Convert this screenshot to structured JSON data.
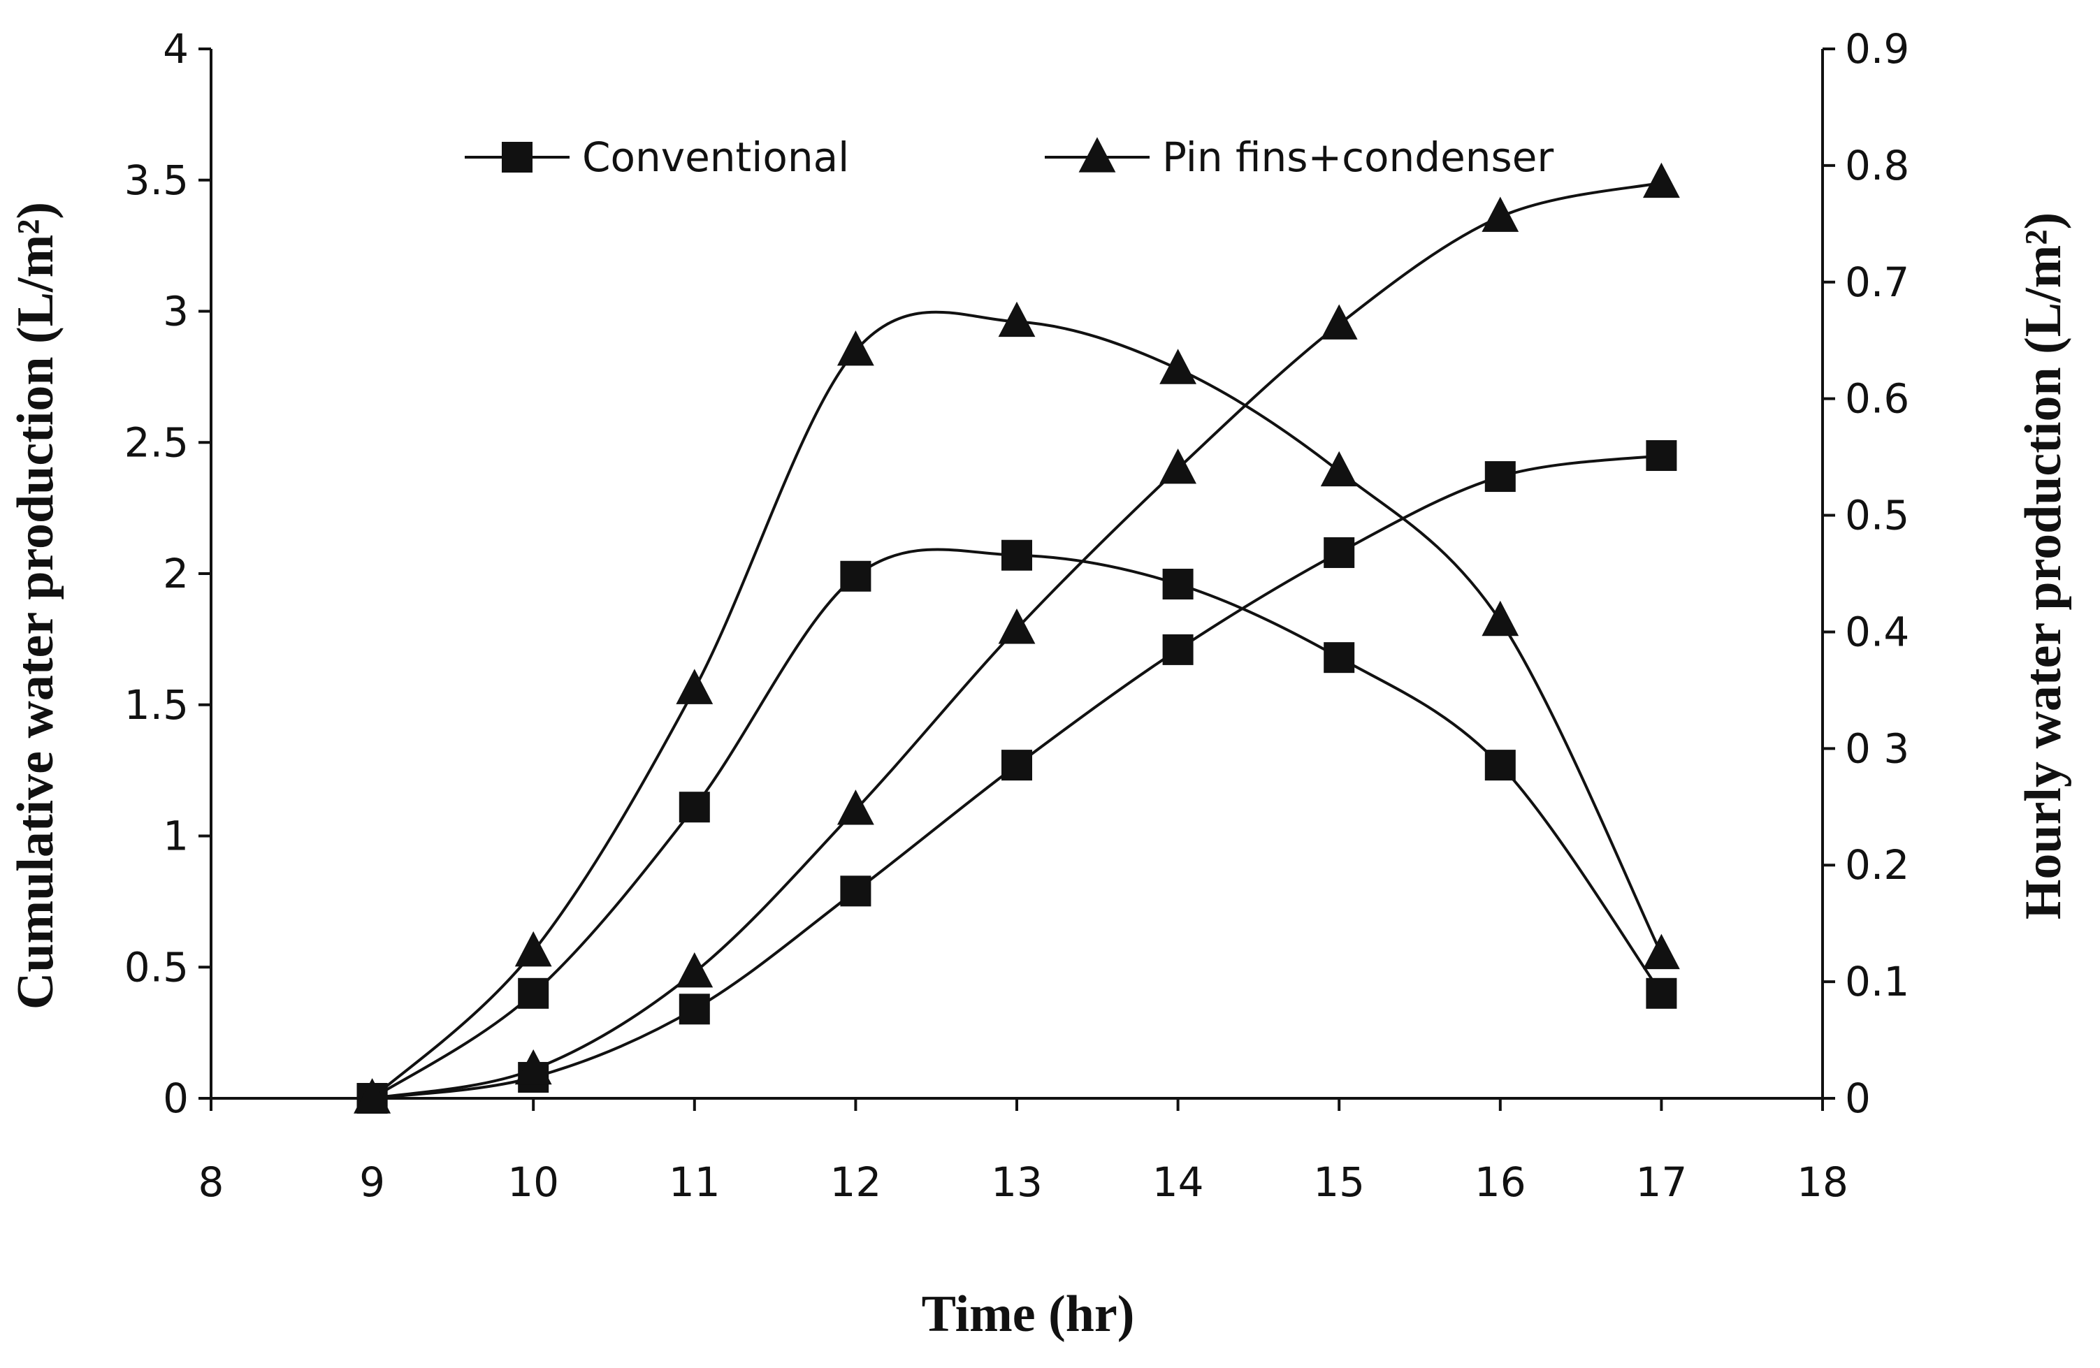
{
  "chart_data": {
    "type": "line",
    "title": "",
    "xlabel": "Time (hr)",
    "ylabel_left": "Cumulative water production (L/m²)",
    "ylabel_right": "Hourly water production (L/m²)",
    "xlim": [
      8,
      18
    ],
    "ylim_left": [
      0,
      4
    ],
    "ylim_right": [
      0,
      0.9
    ],
    "x_ticks": [
      "8",
      "9",
      "10",
      "11",
      "12",
      "13",
      "14",
      "15",
      "16",
      "17",
      "18"
    ],
    "y_left_ticks": [
      "0",
      "0.5",
      "1",
      "1.5",
      "2",
      "2.5",
      "3",
      "3.5",
      "4"
    ],
    "y_right_ticks": [
      "0",
      "0.1",
      "0.2",
      "0 3",
      "0.4",
      "0.5",
      "0.6",
      "0.7",
      "0.8",
      "0.9"
    ],
    "legend": {
      "position": "top",
      "entries": [
        {
          "label": "Conventional",
          "marker": "square"
        },
        {
          "label": "Pin fins+condenser",
          "marker": "triangle"
        }
      ]
    },
    "grid": false,
    "x": [
      9,
      10,
      11,
      12,
      13,
      14,
      15,
      16,
      17
    ],
    "series": [
      {
        "name": "Conventional",
        "kind": "cumulative",
        "axis": "left",
        "marker": "square",
        "values": [
          0,
          0.08,
          0.34,
          0.79,
          1.27,
          1.71,
          2.08,
          2.37,
          2.45
        ]
      },
      {
        "name": "Conventional",
        "kind": "hourly",
        "axis": "left",
        "marker": "square",
        "values": [
          0,
          0.4,
          1.11,
          1.99,
          2.07,
          1.96,
          1.68,
          1.27,
          0.4
        ]
      },
      {
        "name": "Pin fins+condenser",
        "kind": "cumulative",
        "axis": "left",
        "marker": "triangle",
        "values": [
          0,
          0.11,
          0.48,
          1.1,
          1.79,
          2.4,
          2.95,
          3.36,
          3.49
        ]
      },
      {
        "name": "Pin fins+condenser",
        "kind": "hourly",
        "axis": "left",
        "marker": "triangle",
        "values": [
          0,
          0.56,
          1.56,
          2.85,
          2.96,
          2.78,
          2.39,
          1.82,
          0.55
        ]
      }
    ]
  }
}
